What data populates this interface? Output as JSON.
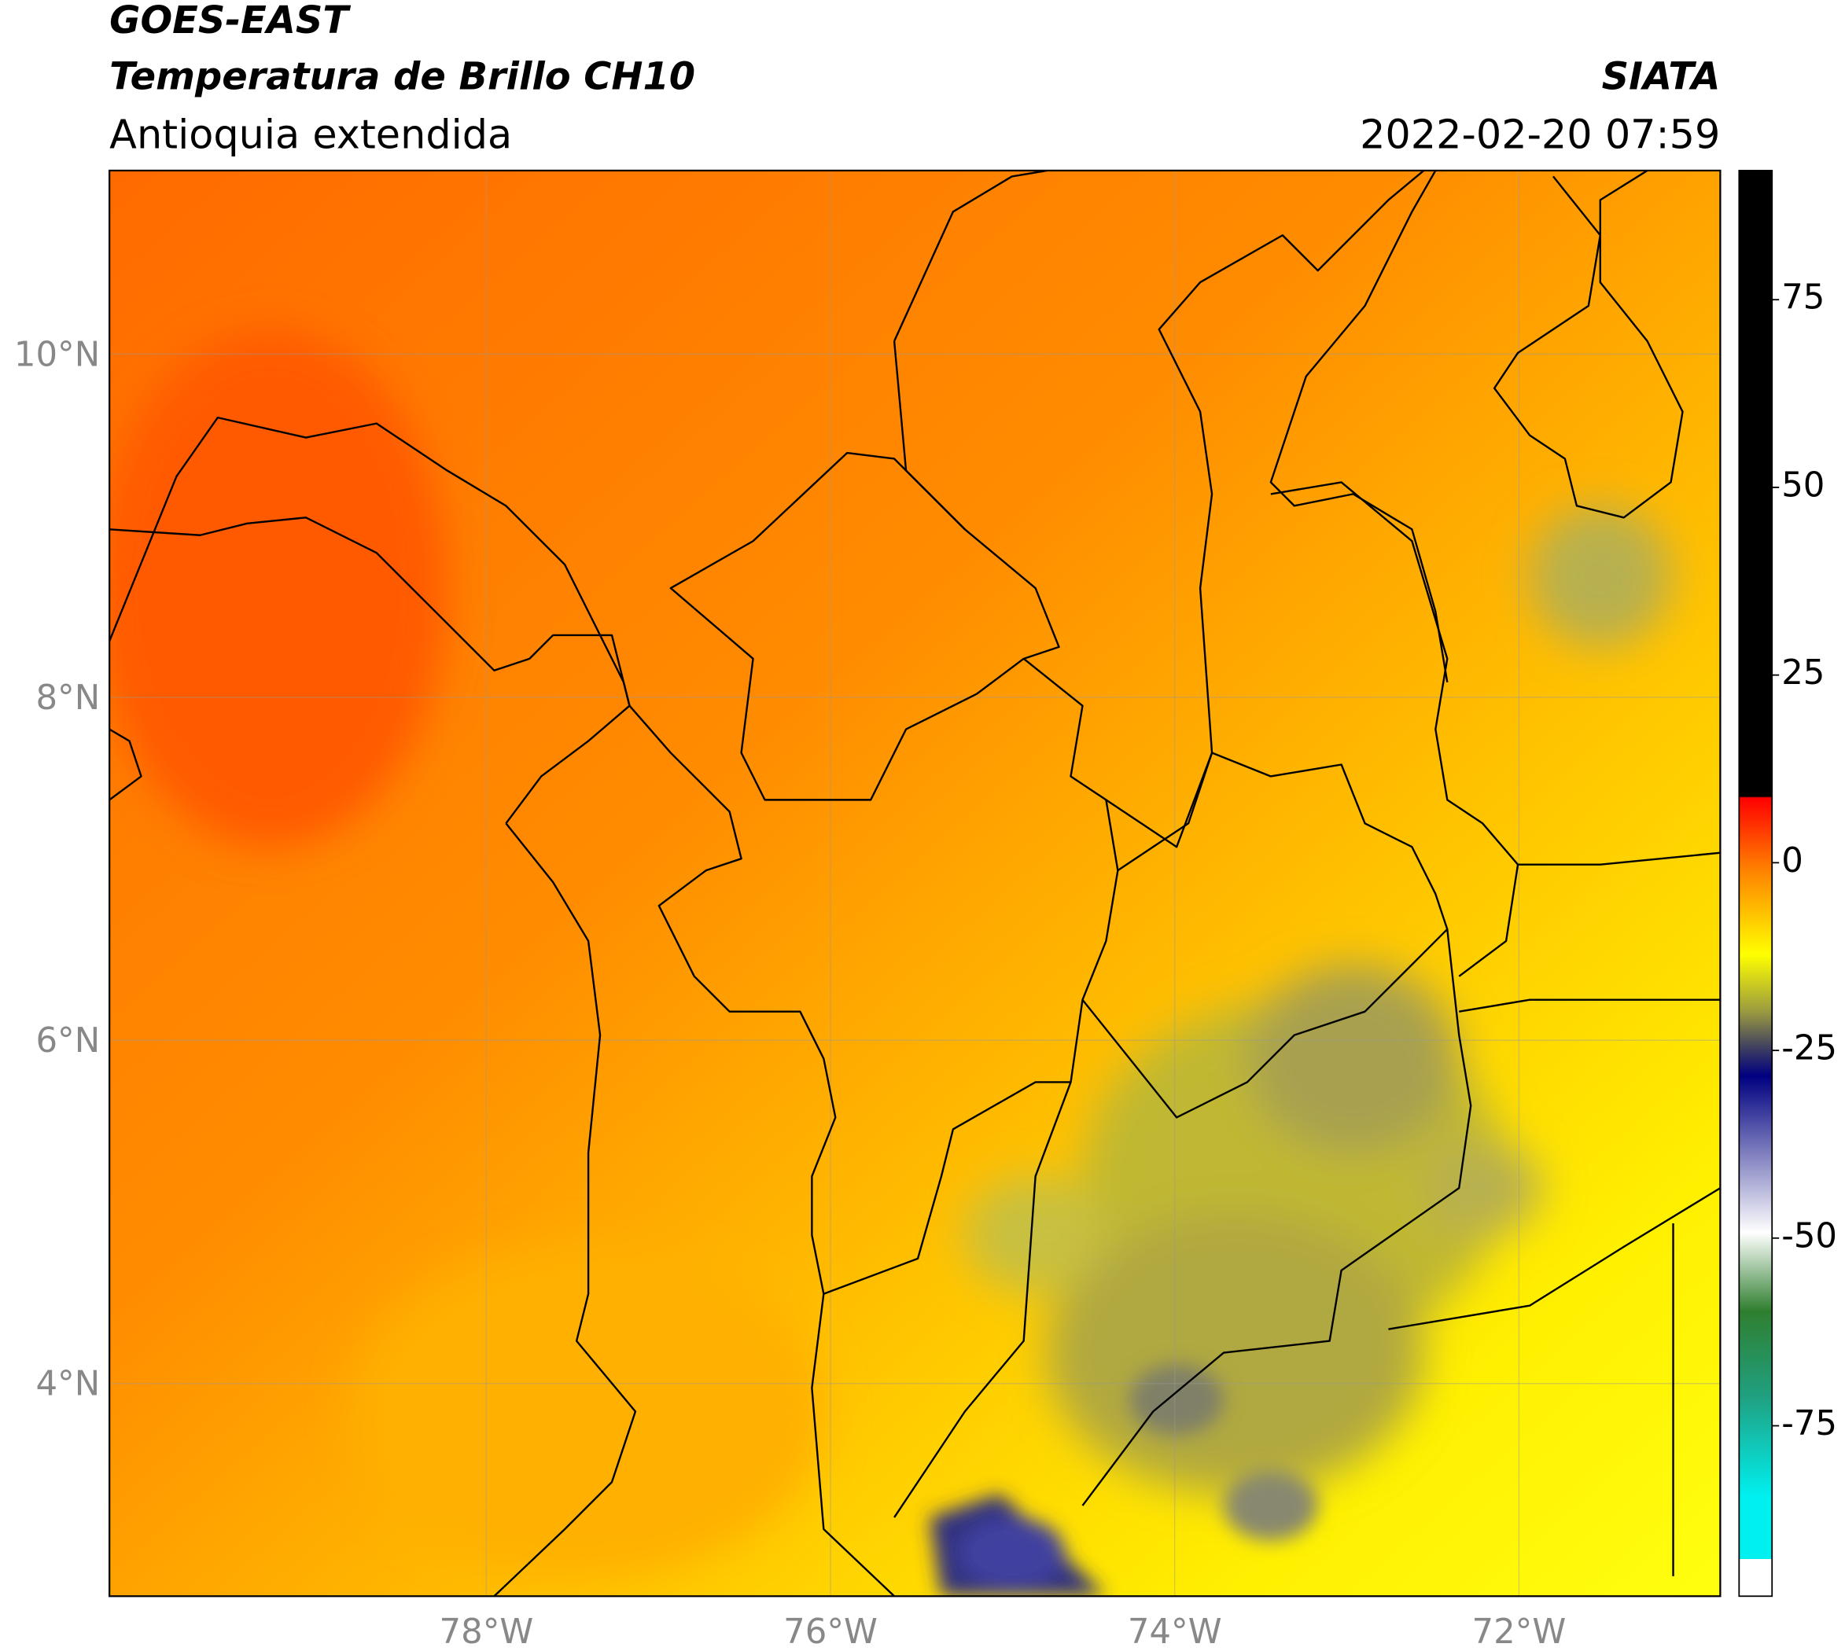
{
  "header": {
    "title": "GOES-EAST",
    "subtitle": "Temperatura de Brillo CH10",
    "region": "Antioquia extendida",
    "source": "SIATA",
    "datetime": "2022-02-20 07:59"
  },
  "map": {
    "latlim": [
      2.76,
      11.07
    ],
    "lonlim": [
      -80.19,
      -70.83
    ],
    "lat_ticks": [
      {
        "value": 10,
        "label": "10°N"
      },
      {
        "value": 8,
        "label": "8°N"
      },
      {
        "value": 6,
        "label": "6°N"
      },
      {
        "value": 4,
        "label": "4°N"
      }
    ],
    "lon_ticks": [
      {
        "value": -78,
        "label": "78°W"
      },
      {
        "value": -76,
        "label": "76°W"
      },
      {
        "value": -74,
        "label": "74°W"
      },
      {
        "value": -72,
        "label": "72°W"
      }
    ],
    "grid": true
  },
  "colorbar": {
    "lim": [
      -97.7,
      92.2
    ],
    "ticks": [
      75,
      50,
      25,
      0,
      -25,
      -50,
      -75
    ]
  }
}
